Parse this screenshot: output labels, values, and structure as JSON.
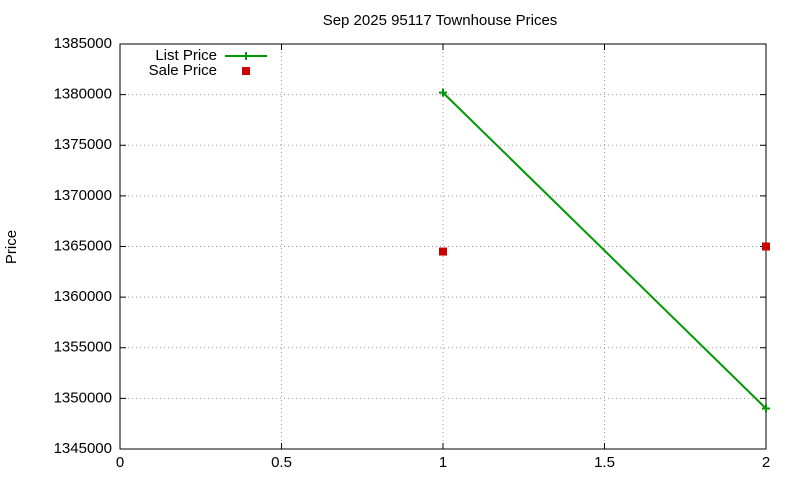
{
  "chart_data": {
    "type": "line",
    "title": "Sep 2025 95117 Townhouse Prices",
    "y_label": "Price",
    "x": [
      1,
      2
    ],
    "series": [
      {
        "name": "List Price",
        "color": "#009900",
        "mode": "lines+markers",
        "marker": "plus",
        "values": [
          1380200,
          1349000
        ]
      },
      {
        "name": "Sale Price",
        "color": "#cc0000",
        "mode": "markers",
        "marker": "square",
        "values": [
          1364500,
          1365000
        ]
      }
    ],
    "xlim": [
      0,
      2
    ],
    "xticks": [
      0,
      0.5,
      1,
      1.5,
      2
    ],
    "ylim": [
      1345000,
      1385000
    ],
    "yticks": [
      1345000,
      1350000,
      1355000,
      1360000,
      1365000,
      1370000,
      1375000,
      1380000,
      1385000
    ],
    "grid": true,
    "legend": "top-left"
  }
}
